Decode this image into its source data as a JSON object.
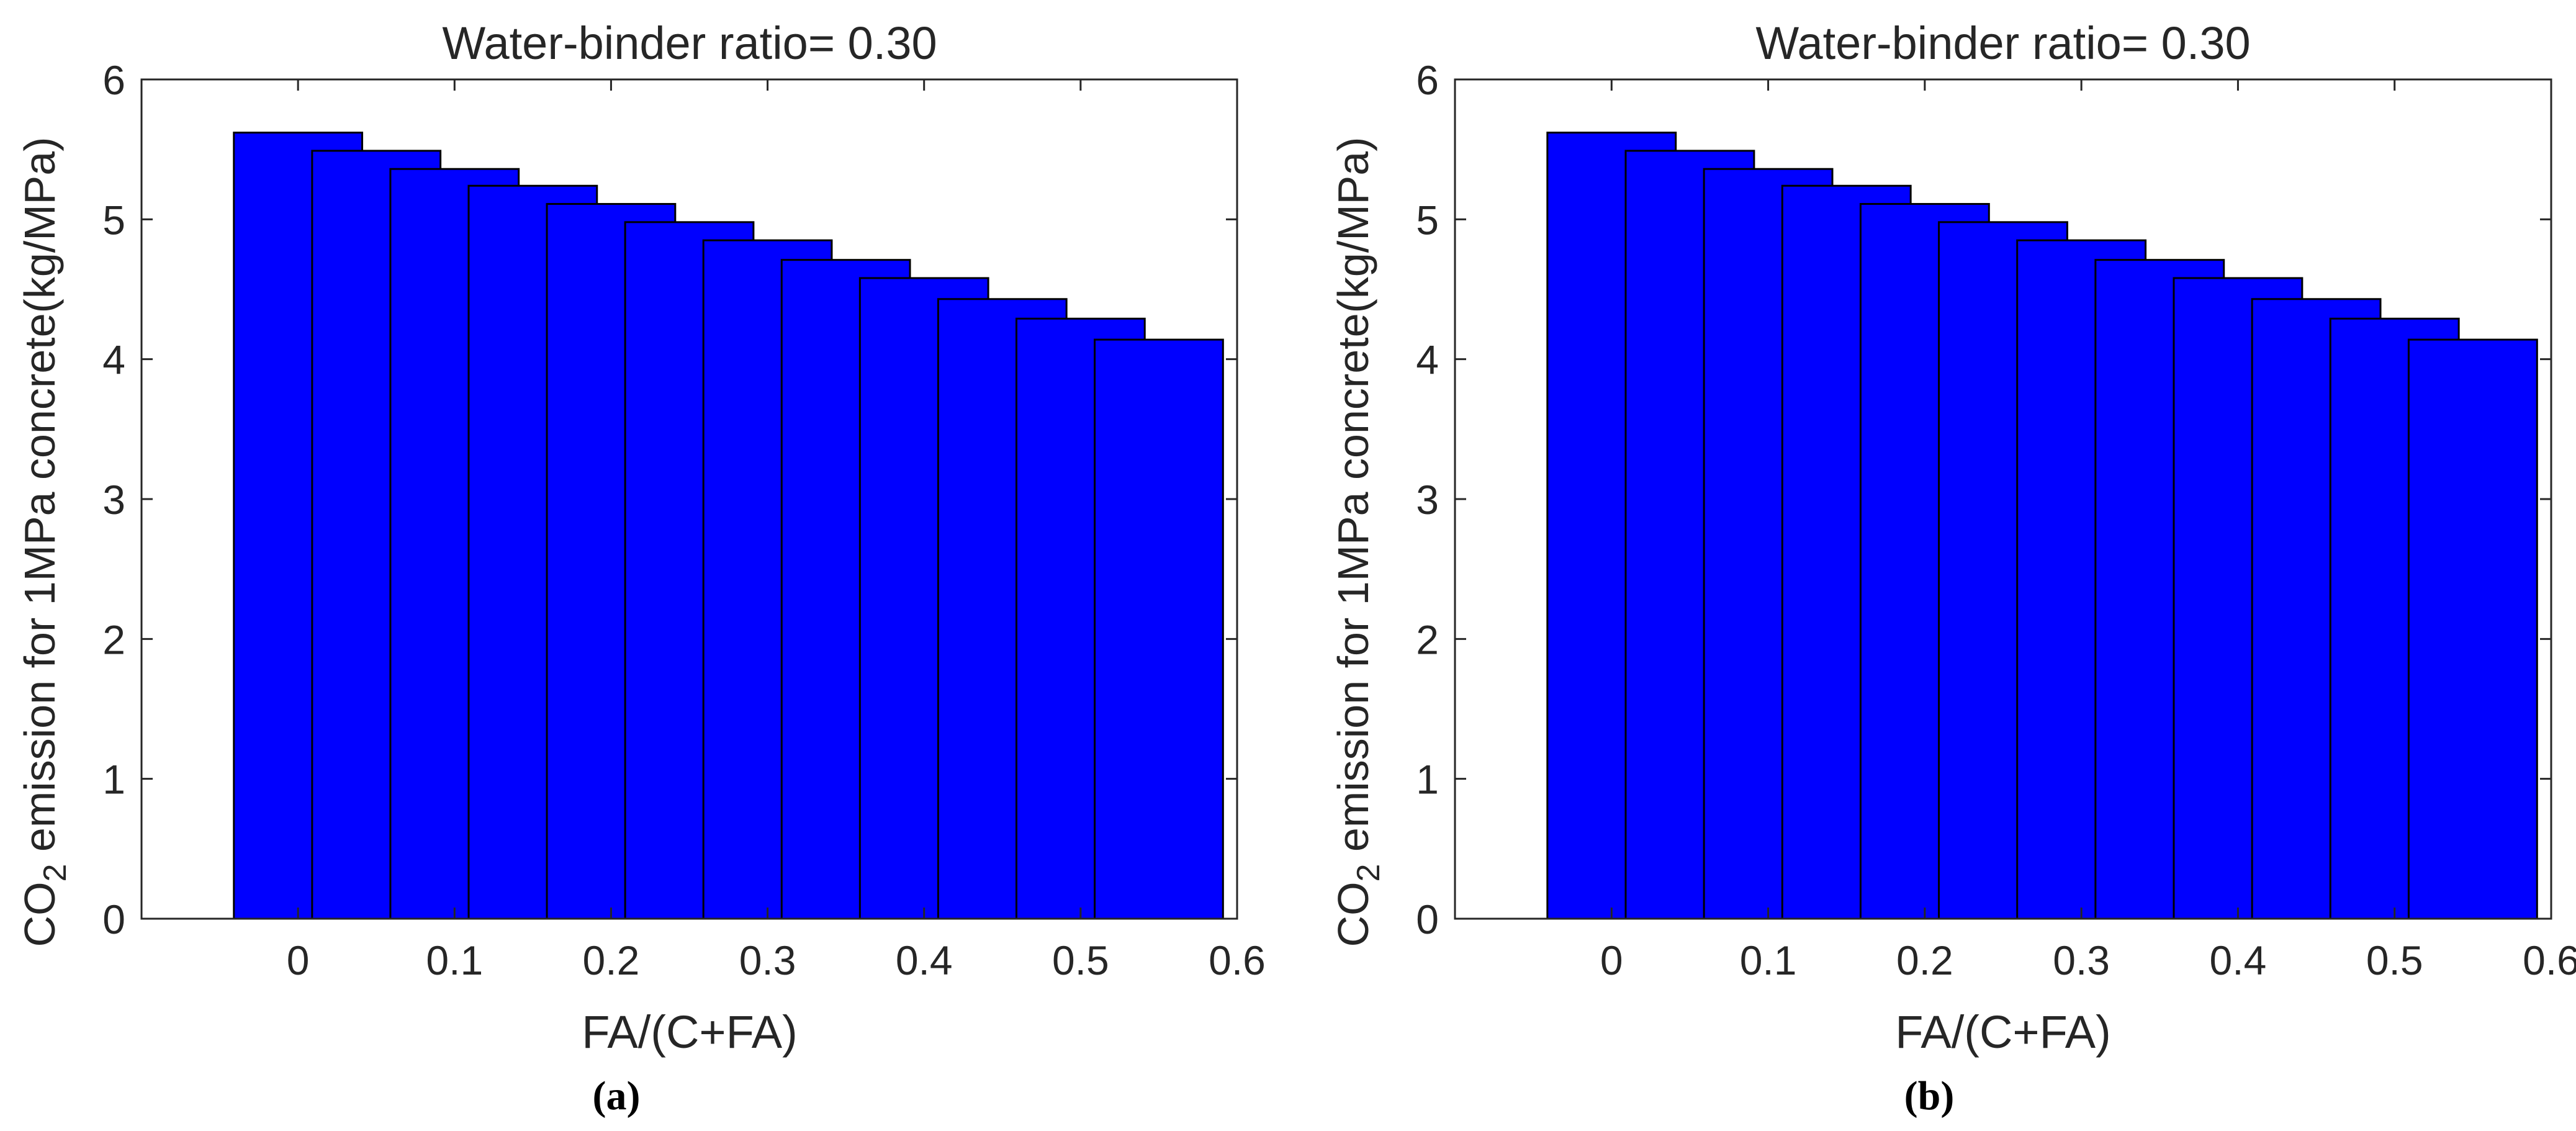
{
  "chart_data": [
    {
      "type": "bar",
      "panel_label": "(a)",
      "title": "Water-binder ratio= 0.30",
      "xlabel": "FA/(C+FA)",
      "ylabel": {
        "prefix": "CO",
        "subscript": "2",
        "suffix": " emission for 1MPa concrete(kg/MPa)"
      },
      "x": [
        0,
        0.05,
        0.1,
        0.15,
        0.2,
        0.25,
        0.3,
        0.35,
        0.4,
        0.45,
        0.5,
        0.55
      ],
      "values": [
        5.62,
        5.49,
        5.36,
        5.24,
        5.11,
        4.98,
        4.85,
        4.71,
        4.58,
        4.43,
        4.29,
        4.14
      ],
      "xlim": [
        -0.1,
        0.6
      ],
      "ylim": [
        0,
        6
      ],
      "xticks": [
        0,
        0.1,
        0.2,
        0.3,
        0.4,
        0.5,
        0.6
      ],
      "xtick_labels": [
        "0",
        "0.1",
        "0.2",
        "0.3",
        "0.4",
        "0.5",
        "0.6"
      ],
      "yticks": [
        0,
        1,
        2,
        3,
        4,
        5,
        6
      ],
      "ytick_labels": [
        "0",
        "1",
        "2",
        "3",
        "4",
        "5",
        "6"
      ],
      "bar_color": "#0000ff",
      "bar_edge_color": "#000000",
      "grid": false
    },
    {
      "type": "bar",
      "panel_label": "(b)",
      "title": "Water-binder ratio= 0.30",
      "xlabel": "FA/(C+FA)",
      "ylabel": {
        "prefix": "CO",
        "subscript": "2",
        "suffix": " emission for 1MPa concrete(kg/MPa)"
      },
      "x": [
        0,
        0.05,
        0.1,
        0.15,
        0.2,
        0.25,
        0.3,
        0.35,
        0.4,
        0.45,
        0.5,
        0.55
      ],
      "values": [
        5.62,
        5.49,
        5.36,
        5.24,
        5.11,
        4.98,
        4.85,
        4.71,
        4.58,
        4.43,
        4.29,
        4.14
      ],
      "xlim": [
        -0.1,
        0.6
      ],
      "ylim": [
        0,
        6
      ],
      "xticks": [
        0,
        0.1,
        0.2,
        0.3,
        0.4,
        0.5,
        0.6
      ],
      "xtick_labels": [
        "0",
        "0.1",
        "0.2",
        "0.3",
        "0.4",
        "0.5",
        "0.6"
      ],
      "yticks": [
        0,
        1,
        2,
        3,
        4,
        5,
        6
      ],
      "ytick_labels": [
        "0",
        "1",
        "2",
        "3",
        "4",
        "5",
        "6"
      ],
      "bar_color": "#0000ff",
      "bar_edge_color": "#000000",
      "grid": false
    }
  ]
}
